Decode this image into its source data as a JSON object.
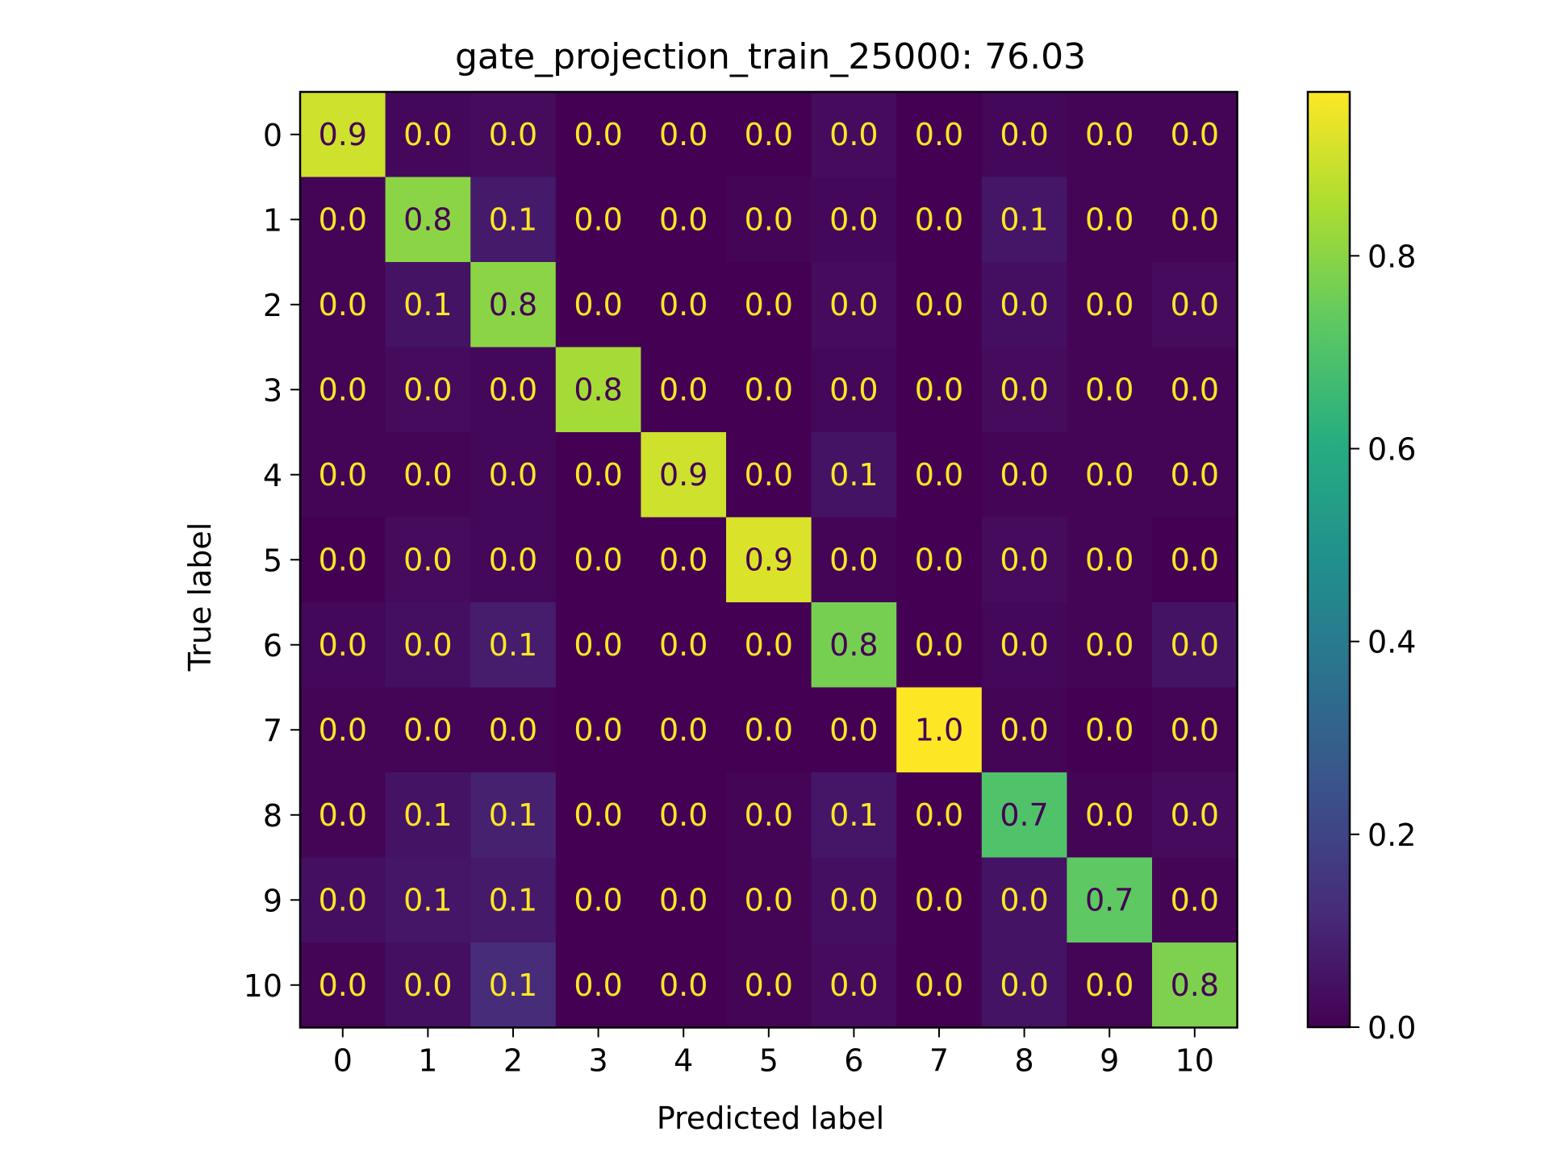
{
  "chart_data": {
    "type": "heatmap",
    "title": "gate_projection_train_25000: 76.03",
    "xlabel": "Predicted label",
    "ylabel": "True label",
    "x_categories": [
      "0",
      "1",
      "2",
      "3",
      "4",
      "5",
      "6",
      "7",
      "8",
      "9",
      "10"
    ],
    "y_categories": [
      "0",
      "1",
      "2",
      "3",
      "4",
      "5",
      "6",
      "7",
      "8",
      "9",
      "10"
    ],
    "values": [
      [
        0.9,
        0.02,
        0.03,
        0.0,
        0.0,
        0.0,
        0.03,
        0.0,
        0.02,
        0.01,
        0.01
      ],
      [
        0.01,
        0.8,
        0.07,
        0.0,
        0.0,
        0.01,
        0.02,
        0.0,
        0.06,
        0.01,
        0.01
      ],
      [
        0.01,
        0.05,
        0.8,
        0.0,
        0.0,
        0.0,
        0.03,
        0.0,
        0.04,
        0.01,
        0.03
      ],
      [
        0.01,
        0.03,
        0.02,
        0.84,
        0.0,
        0.0,
        0.02,
        0.0,
        0.03,
        0.01,
        0.01
      ],
      [
        0.01,
        0.01,
        0.02,
        0.0,
        0.9,
        0.0,
        0.05,
        0.0,
        0.01,
        0.01,
        0.01
      ],
      [
        0.0,
        0.03,
        0.02,
        0.0,
        0.0,
        0.92,
        0.01,
        0.0,
        0.03,
        0.01,
        0.0
      ],
      [
        0.02,
        0.04,
        0.08,
        0.0,
        0.0,
        0.0,
        0.77,
        0.0,
        0.02,
        0.01,
        0.05
      ],
      [
        0.01,
        0.01,
        0.01,
        0.0,
        0.0,
        0.0,
        0.0,
        0.97,
        0.01,
        0.0,
        0.01
      ],
      [
        0.01,
        0.05,
        0.09,
        0.0,
        0.0,
        0.01,
        0.06,
        0.0,
        0.7,
        0.01,
        0.03
      ],
      [
        0.04,
        0.06,
        0.07,
        0.0,
        0.0,
        0.01,
        0.04,
        0.0,
        0.05,
        0.73,
        0.01
      ],
      [
        0.01,
        0.04,
        0.12,
        0.0,
        0.0,
        0.01,
        0.03,
        0.0,
        0.05,
        0.01,
        0.78
      ]
    ],
    "labels": [
      [
        "0.9",
        "0.0",
        "0.0",
        "0.0",
        "0.0",
        "0.0",
        "0.0",
        "0.0",
        "0.0",
        "0.0",
        "0.0"
      ],
      [
        "0.0",
        "0.8",
        "0.1",
        "0.0",
        "0.0",
        "0.0",
        "0.0",
        "0.0",
        "0.1",
        "0.0",
        "0.0"
      ],
      [
        "0.0",
        "0.1",
        "0.8",
        "0.0",
        "0.0",
        "0.0",
        "0.0",
        "0.0",
        "0.0",
        "0.0",
        "0.0"
      ],
      [
        "0.0",
        "0.0",
        "0.0",
        "0.8",
        "0.0",
        "0.0",
        "0.0",
        "0.0",
        "0.0",
        "0.0",
        "0.0"
      ],
      [
        "0.0",
        "0.0",
        "0.0",
        "0.0",
        "0.9",
        "0.0",
        "0.1",
        "0.0",
        "0.0",
        "0.0",
        "0.0"
      ],
      [
        "0.0",
        "0.0",
        "0.0",
        "0.0",
        "0.0",
        "0.9",
        "0.0",
        "0.0",
        "0.0",
        "0.0",
        "0.0"
      ],
      [
        "0.0",
        "0.0",
        "0.1",
        "0.0",
        "0.0",
        "0.0",
        "0.8",
        "0.0",
        "0.0",
        "0.0",
        "0.0"
      ],
      [
        "0.0",
        "0.0",
        "0.0",
        "0.0",
        "0.0",
        "0.0",
        "0.0",
        "1.0",
        "0.0",
        "0.0",
        "0.0"
      ],
      [
        "0.0",
        "0.1",
        "0.1",
        "0.0",
        "0.0",
        "0.0",
        "0.1",
        "0.0",
        "0.7",
        "0.0",
        "0.0"
      ],
      [
        "0.0",
        "0.1",
        "0.1",
        "0.0",
        "0.0",
        "0.0",
        "0.0",
        "0.0",
        "0.0",
        "0.7",
        "0.0"
      ],
      [
        "0.0",
        "0.0",
        "0.1",
        "0.0",
        "0.0",
        "0.0",
        "0.0",
        "0.0",
        "0.0",
        "0.0",
        "0.8"
      ]
    ],
    "colormap": "viridis",
    "vlim": [
      0.0,
      0.97
    ],
    "colorbar_ticks": [
      0.0,
      0.2,
      0.4,
      0.6,
      0.8
    ],
    "colorbar_tick_labels": [
      "0.0",
      "0.2",
      "0.4",
      "0.6",
      "0.8"
    ],
    "text_colors": {
      "on_dark": "#fde725",
      "on_light": "#440154"
    },
    "grid": false
  }
}
